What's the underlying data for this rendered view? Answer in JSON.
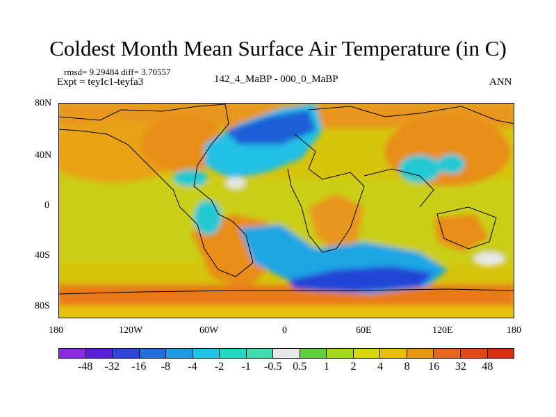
{
  "title": "Coldest Month Mean Surface Air Temperature (in C)",
  "stats": "rmsd= 9.29484 diff= 3.70557",
  "expt": "Expt = teyIc1-teyfa3",
  "period": "142_4_MaBP - 000_0_MaBP",
  "season": "ANN",
  "lat_ticks": [
    "80N",
    "40N",
    "0",
    "40S",
    "80S"
  ],
  "lon_ticks": [
    "180",
    "120W",
    "60W",
    "0",
    "60E",
    "120E",
    "180"
  ],
  "colorbar": {
    "labels": [
      "-48",
      "-32",
      "-16",
      "-8",
      "-4",
      "-2",
      "-1",
      "-0.5",
      "0.5",
      "1",
      "2",
      "4",
      "8",
      "16",
      "32",
      "48"
    ],
    "colors": [
      "#8a2be2",
      "#5a1fd6",
      "#2f46d8",
      "#1f6fdf",
      "#1e9be6",
      "#1fc2e8",
      "#22d9c4",
      "#3fdcb0",
      "#e8e8e8",
      "#5fd23a",
      "#a6d81d",
      "#d6d60f",
      "#e9bd0a",
      "#e89510",
      "#e8671a",
      "#e34a12",
      "#d8300e"
    ]
  }
}
